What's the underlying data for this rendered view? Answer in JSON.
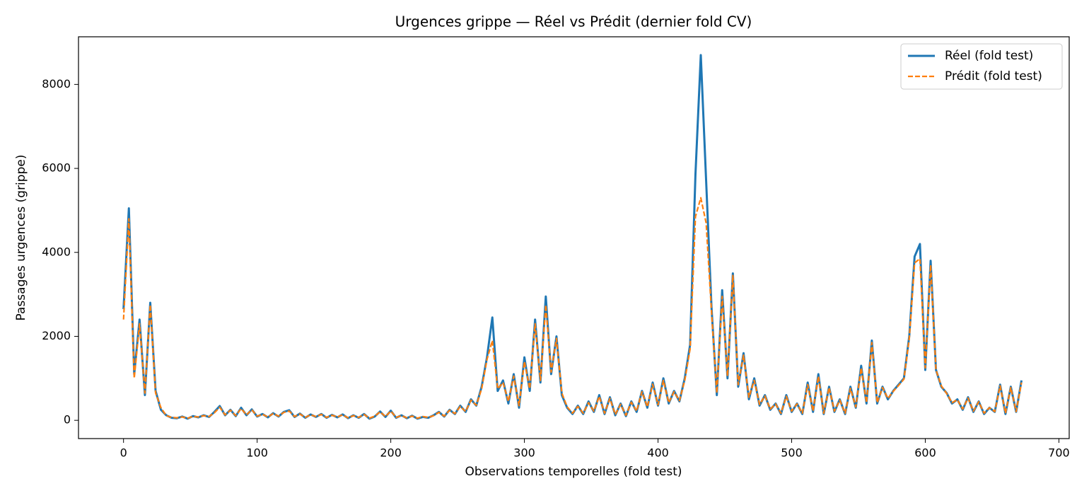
{
  "chart_data": {
    "type": "line",
    "title": "Urgences grippe — Réel vs Prédit (dernier fold CV)",
    "xlabel": "Observations temporelles (fold test)",
    "ylabel": "Passages urgences (grippe)",
    "xlim": [
      -33.7,
      707.7
    ],
    "ylim": [
      -435,
      9135
    ],
    "xticks": [
      0,
      100,
      200,
      300,
      400,
      500,
      600,
      700
    ],
    "yticks": [
      0,
      2000,
      4000,
      6000,
      8000
    ],
    "grid": false,
    "legend": "upper right",
    "x": [
      0,
      4,
      8,
      12,
      16,
      20,
      24,
      28,
      32,
      36,
      40,
      44,
      48,
      52,
      56,
      60,
      64,
      68,
      72,
      76,
      80,
      84,
      88,
      92,
      96,
      100,
      104,
      108,
      112,
      116,
      120,
      124,
      128,
      132,
      136,
      140,
      144,
      148,
      152,
      156,
      160,
      164,
      168,
      172,
      176,
      180,
      184,
      188,
      192,
      196,
      200,
      204,
      208,
      212,
      216,
      220,
      224,
      228,
      232,
      236,
      240,
      244,
      248,
      252,
      256,
      260,
      264,
      268,
      272,
      276,
      280,
      284,
      288,
      292,
      296,
      300,
      304,
      308,
      312,
      316,
      320,
      324,
      328,
      332,
      336,
      340,
      344,
      348,
      352,
      356,
      360,
      364,
      368,
      372,
      376,
      380,
      384,
      388,
      392,
      396,
      400,
      404,
      408,
      412,
      416,
      420,
      424,
      428,
      432,
      436,
      440,
      444,
      448,
      452,
      456,
      460,
      464,
      468,
      472,
      476,
      480,
      484,
      488,
      492,
      496,
      500,
      504,
      508,
      512,
      516,
      520,
      524,
      528,
      532,
      536,
      540,
      544,
      548,
      552,
      556,
      560,
      564,
      568,
      572,
      576,
      580,
      584,
      588,
      592,
      596,
      600,
      604,
      608,
      612,
      616,
      620,
      624,
      628,
      632,
      636,
      640,
      644,
      648,
      652,
      656,
      660,
      664,
      668,
      672
    ],
    "series": [
      {
        "name": "Réel (fold test)",
        "color": "#1f77b4",
        "linestyle": "solid",
        "values": [
          2650,
          5050,
          1100,
          2400,
          600,
          2800,
          700,
          250,
          120,
          60,
          50,
          90,
          40,
          100,
          70,
          120,
          80,
          200,
          340,
          120,
          250,
          100,
          300,
          120,
          260,
          90,
          150,
          70,
          170,
          90,
          200,
          240,
          80,
          160,
          60,
          140,
          80,
          150,
          60,
          130,
          70,
          140,
          50,
          120,
          60,
          150,
          40,
          90,
          210,
          80,
          230,
          60,
          120,
          50,
          110,
          40,
          80,
          60,
          120,
          200,
          90,
          250,
          150,
          350,
          200,
          500,
          350,
          800,
          1500,
          2450,
          700,
          950,
          400,
          1100,
          300,
          1500,
          700,
          2400,
          900,
          2950,
          1100,
          2000,
          600,
          300,
          150,
          350,
          150,
          450,
          200,
          600,
          150,
          550,
          120,
          400,
          100,
          450,
          200,
          700,
          300,
          900,
          350,
          1000,
          400,
          700,
          450,
          1000,
          1800,
          5850,
          8700,
          5700,
          2700,
          600,
          3100,
          1000,
          3500,
          800,
          1600,
          500,
          1000,
          350,
          600,
          250,
          400,
          150,
          600,
          200,
          400,
          150,
          900,
          200,
          1100,
          150,
          800,
          200,
          500,
          150,
          800,
          300,
          1300,
          400,
          1900,
          400,
          800,
          500,
          700,
          850,
          1000,
          2000,
          3900,
          4200,
          1200,
          3800,
          1200,
          800,
          650,
          400,
          500,
          250,
          550,
          200,
          450,
          150,
          300,
          200,
          850,
          150,
          800,
          200,
          950
        ]
      },
      {
        "name": "Prédit (fold test)",
        "color": "#ff7f0e",
        "linestyle": "dashed",
        "values": [
          2400,
          4800,
          1000,
          2300,
          650,
          2750,
          650,
          300,
          110,
          70,
          60,
          80,
          50,
          90,
          80,
          110,
          90,
          180,
          310,
          130,
          240,
          110,
          280,
          130,
          250,
          100,
          140,
          80,
          160,
          100,
          190,
          220,
          90,
          150,
          70,
          130,
          90,
          140,
          70,
          120,
          80,
          130,
          60,
          110,
          70,
          140,
          50,
          100,
          200,
          90,
          220,
          70,
          110,
          60,
          100,
          50,
          90,
          70,
          110,
          190,
          100,
          240,
          160,
          330,
          210,
          480,
          360,
          750,
          1450,
          1900,
          750,
          900,
          450,
          1050,
          350,
          1400,
          750,
          2300,
          950,
          2750,
          1150,
          1950,
          650,
          320,
          170,
          330,
          170,
          420,
          220,
          570,
          170,
          520,
          140,
          380,
          120,
          430,
          220,
          680,
          320,
          860,
          370,
          950,
          420,
          680,
          470,
          950,
          1700,
          4850,
          5300,
          4700,
          2600,
          650,
          2950,
          1050,
          3450,
          850,
          1550,
          550,
          950,
          380,
          580,
          270,
          390,
          170,
          570,
          220,
          390,
          170,
          850,
          220,
          1050,
          170,
          780,
          220,
          480,
          170,
          760,
          320,
          1250,
          420,
          1850,
          420,
          780,
          520,
          690,
          830,
          980,
          1950,
          3750,
          3850,
          1250,
          3700,
          1200,
          820,
          640,
          420,
          490,
          270,
          530,
          220,
          440,
          170,
          300,
          210,
          820,
          170,
          780,
          210,
          900
        ]
      }
    ]
  }
}
